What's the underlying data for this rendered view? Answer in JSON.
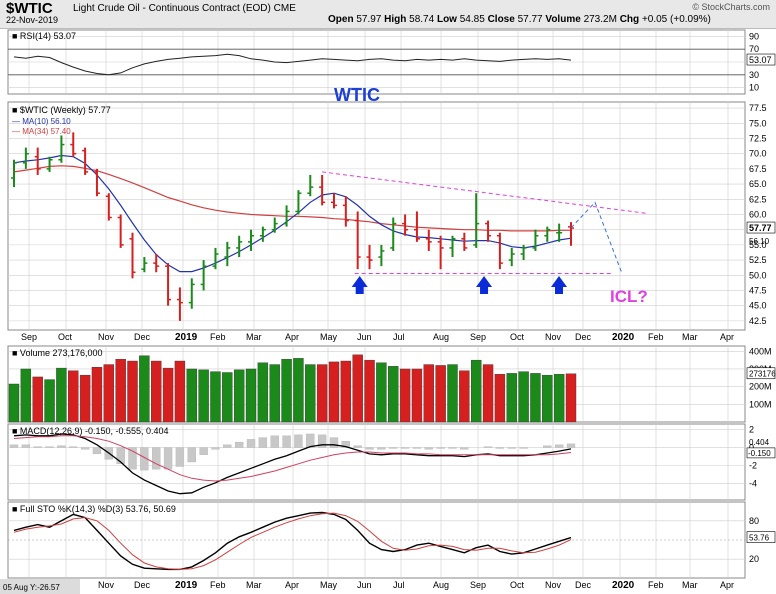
{
  "header": {
    "symbol": "$WTIC",
    "description": "Light Crude Oil - Continuous Contract (EOD)",
    "exchange": "CME",
    "date": "22-Nov-2019",
    "open_label": "Open",
    "open": "57.97",
    "high_label": "High",
    "high": "58.74",
    "low_label": "Low",
    "low": "54.85",
    "close_label": "Close",
    "close": "57.77",
    "volume_label": "Volume",
    "volume": "273.2M",
    "chg_label": "Chg",
    "chg": "+0.05 (+0.09%)",
    "credit": "© StockCharts.com"
  },
  "colors": {
    "up": "#1b8a1b",
    "down": "#d62020",
    "ma10": "#2233aa",
    "ma34": "#d04040",
    "annotation_pink": "#e040e0",
    "arrow_blue": "#0a2bd8",
    "wtic_blue": "#1c3fd6",
    "grid": "#cfcfcf"
  },
  "chart_data": [
    {
      "type": "line",
      "panel": "RSI",
      "legend": "RSI(14) 53.07",
      "ylim": [
        0,
        100
      ],
      "y_ticks": [
        "90",
        "70",
        "50",
        "30",
        "10"
      ],
      "last_value": "53.07",
      "values": [
        58,
        56,
        59,
        57,
        49,
        42,
        36,
        32,
        30,
        33,
        41,
        47,
        51,
        54,
        56,
        58,
        59,
        60,
        62,
        60,
        55,
        53,
        50,
        49,
        51,
        53,
        55,
        54,
        53,
        52,
        54,
        55,
        53,
        52,
        54,
        53,
        54,
        53,
        55,
        53,
        52,
        51,
        53,
        54,
        55,
        54,
        55,
        53
      ]
    },
    {
      "type": "line",
      "panel": "Price",
      "title": "$WTIC (Weekly) 57.77",
      "watermark": "WTIC",
      "ylim": [
        41,
        78.5
      ],
      "y_ticks": [
        "77.5",
        "75.0",
        "72.5",
        "70.0",
        "67.5",
        "65.0",
        "62.5",
        "60.0",
        "57.5",
        "55.0",
        "52.5",
        "50.0",
        "47.5",
        "45.0",
        "42.5"
      ],
      "last_price_label": "57.77",
      "ma10_label": "56.10",
      "x_labels": [
        "Sep",
        "Oct",
        "Nov",
        "Dec",
        "2019",
        "Feb",
        "Mar",
        "Apr",
        "May",
        "Jun",
        "Jul",
        "Aug",
        "Sep",
        "Oct",
        "Nov",
        "Dec",
        "2020",
        "Feb",
        "Mar",
        "Apr"
      ],
      "series": [
        {
          "name": "MA(10) 56.10",
          "values": [
            68.5,
            68.8,
            69.0,
            69.3,
            69.7,
            69.5,
            68.4,
            66.5,
            64.2,
            61.5,
            58.6,
            55.8,
            53.4,
            51.7,
            50.6,
            50.6,
            51.2,
            52.0,
            52.9,
            53.9,
            55.0,
            56.2,
            57.4,
            58.8,
            60.3,
            62.0,
            63.2,
            63.5,
            62.9,
            61.5,
            59.7,
            58.3,
            57.3,
            56.7,
            56.3,
            56.2,
            56.0,
            55.8,
            55.6,
            55.7,
            55.7,
            55.3,
            54.7,
            54.5,
            54.8,
            55.3,
            55.8,
            56.1
          ]
        },
        {
          "name": "MA(34) 57.40",
          "values": [
            67.0,
            67.3,
            67.6,
            67.9,
            68.0,
            67.9,
            67.6,
            67.2,
            66.6,
            65.9,
            65.2,
            64.4,
            63.6,
            62.8,
            62.2,
            61.6,
            61.1,
            60.7,
            60.4,
            60.2,
            60.0,
            59.9,
            59.8,
            59.7,
            59.7,
            59.6,
            59.5,
            59.3,
            59.2,
            59.0,
            58.8,
            58.5,
            58.3,
            58.1,
            57.9,
            57.8,
            57.7,
            57.6,
            57.5,
            57.5,
            57.4,
            57.4,
            57.3,
            57.3,
            57.3,
            57.3,
            57.4,
            57.4
          ]
        }
      ],
      "candles": [
        {
          "o": 66.0,
          "h": 69.0,
          "l": 64.5,
          "c": 68.5
        },
        {
          "o": 68.5,
          "h": 71.0,
          "l": 67.5,
          "c": 70.0
        },
        {
          "o": 69.5,
          "h": 71.0,
          "l": 66.5,
          "c": 67.5
        },
        {
          "o": 67.5,
          "h": 69.5,
          "l": 67.0,
          "c": 69.0
        },
        {
          "o": 69.0,
          "h": 73.0,
          "l": 68.5,
          "c": 71.5
        },
        {
          "o": 71.5,
          "h": 73.5,
          "l": 69.5,
          "c": 70.0
        },
        {
          "o": 70.5,
          "h": 71.0,
          "l": 66.5,
          "c": 67.0
        },
        {
          "o": 67.0,
          "h": 67.5,
          "l": 63.0,
          "c": 63.5
        },
        {
          "o": 63.0,
          "h": 63.5,
          "l": 59.0,
          "c": 59.5
        },
        {
          "o": 59.5,
          "h": 60.0,
          "l": 54.5,
          "c": 55.0
        },
        {
          "o": 56.0,
          "h": 57.0,
          "l": 49.5,
          "c": 50.5
        },
        {
          "o": 51.0,
          "h": 53.0,
          "l": 50.5,
          "c": 52.0
        },
        {
          "o": 52.0,
          "h": 53.5,
          "l": 50.5,
          "c": 51.5
        },
        {
          "o": 51.5,
          "h": 52.0,
          "l": 45.0,
          "c": 46.0
        },
        {
          "o": 46.0,
          "h": 48.0,
          "l": 42.5,
          "c": 45.5
        },
        {
          "o": 45.5,
          "h": 49.5,
          "l": 44.5,
          "c": 48.5
        },
        {
          "o": 48.5,
          "h": 52.5,
          "l": 47.5,
          "c": 51.5
        },
        {
          "o": 51.5,
          "h": 54.5,
          "l": 51.0,
          "c": 53.5
        },
        {
          "o": 53.0,
          "h": 55.5,
          "l": 51.5,
          "c": 54.5
        },
        {
          "o": 54.5,
          "h": 56.5,
          "l": 53.0,
          "c": 55.5
        },
        {
          "o": 55.5,
          "h": 57.5,
          "l": 54.0,
          "c": 56.5
        },
        {
          "o": 56.5,
          "h": 58.0,
          "l": 55.5,
          "c": 57.5
        },
        {
          "o": 57.5,
          "h": 59.5,
          "l": 57.0,
          "c": 58.5
        },
        {
          "o": 58.5,
          "h": 61.5,
          "l": 58.0,
          "c": 60.5
        },
        {
          "o": 60.5,
          "h": 64.0,
          "l": 60.0,
          "c": 63.5
        },
        {
          "o": 63.5,
          "h": 66.5,
          "l": 63.0,
          "c": 64.5
        },
        {
          "o": 64.5,
          "h": 66.5,
          "l": 61.5,
          "c": 62.0
        },
        {
          "o": 62.0,
          "h": 63.5,
          "l": 61.0,
          "c": 61.5
        },
        {
          "o": 61.5,
          "h": 63.0,
          "l": 58.0,
          "c": 59.0
        },
        {
          "o": 59.0,
          "h": 60.5,
          "l": 51.0,
          "c": 53.0
        },
        {
          "o": 53.0,
          "h": 55.0,
          "l": 51.0,
          "c": 52.5
        },
        {
          "o": 53.0,
          "h": 55.0,
          "l": 51.5,
          "c": 54.0
        },
        {
          "o": 54.5,
          "h": 59.5,
          "l": 54.0,
          "c": 58.5
        },
        {
          "o": 58.5,
          "h": 60.0,
          "l": 56.5,
          "c": 57.5
        },
        {
          "o": 57.5,
          "h": 60.5,
          "l": 55.5,
          "c": 56.0
        },
        {
          "o": 56.0,
          "h": 57.5,
          "l": 54.0,
          "c": 55.5
        },
        {
          "o": 55.5,
          "h": 56.5,
          "l": 51.0,
          "c": 54.5
        },
        {
          "o": 54.5,
          "h": 56.5,
          "l": 53.0,
          "c": 56.0
        },
        {
          "o": 56.0,
          "h": 57.0,
          "l": 54.0,
          "c": 54.5
        },
        {
          "o": 55.0,
          "h": 63.5,
          "l": 54.5,
          "c": 58.5
        },
        {
          "o": 58.5,
          "h": 59.0,
          "l": 55.5,
          "c": 56.5
        },
        {
          "o": 56.5,
          "h": 57.0,
          "l": 51.0,
          "c": 52.0
        },
        {
          "o": 52.5,
          "h": 54.5,
          "l": 51.5,
          "c": 53.5
        },
        {
          "o": 53.5,
          "h": 55.0,
          "l": 52.5,
          "c": 54.5
        },
        {
          "o": 54.5,
          "h": 57.5,
          "l": 54.0,
          "c": 56.5
        },
        {
          "o": 56.5,
          "h": 58.0,
          "l": 55.5,
          "c": 57.5
        },
        {
          "o": 57.0,
          "h": 58.5,
          "l": 55.5,
          "c": 57.0
        },
        {
          "o": 57.97,
          "h": 58.74,
          "l": 54.85,
          "c": 57.77
        }
      ],
      "annotations": [
        "ICL?"
      ]
    },
    {
      "type": "bar",
      "panel": "Volume",
      "legend": "Volume 273,176,000",
      "y_ticks": [
        "400M",
        "300M",
        "200M",
        "100M"
      ],
      "last_value": "273176",
      "values": [
        215,
        300,
        255,
        240,
        305,
        290,
        265,
        310,
        325,
        355,
        345,
        375,
        345,
        305,
        345,
        300,
        295,
        285,
        280,
        295,
        300,
        335,
        325,
        355,
        360,
        325,
        325,
        340,
        345,
        380,
        350,
        335,
        315,
        300,
        300,
        325,
        320,
        325,
        290,
        350,
        325,
        270,
        275,
        285,
        275,
        265,
        270,
        273
      ]
    },
    {
      "type": "line",
      "panel": "MACD",
      "legend": "MACD(12,26,9) -0.150, -0.555, 0.404",
      "y_ticks": [
        "2",
        "0",
        "-2",
        "-4"
      ],
      "last_value_labels": [
        "0.404",
        "-0.150"
      ],
      "series": [
        {
          "name": "MACD",
          "values": [
            1.3,
            1.4,
            1.3,
            1.3,
            1.5,
            1.4,
            1.0,
            0.3,
            -0.6,
            -1.6,
            -2.8,
            -3.6,
            -4.2,
            -4.8,
            -5.1,
            -5.0,
            -4.4,
            -3.9,
            -3.3,
            -2.8,
            -2.3,
            -1.8,
            -1.3,
            -0.9,
            -0.4,
            0.1,
            0.3,
            0.3,
            0.1,
            -0.3,
            -0.7,
            -0.8,
            -0.7,
            -0.7,
            -0.8,
            -0.9,
            -0.9,
            -0.9,
            -1.0,
            -0.8,
            -0.7,
            -0.9,
            -0.9,
            -0.9,
            -0.8,
            -0.6,
            -0.4,
            -0.15
          ]
        },
        {
          "name": "Signal",
          "values": [
            1.0,
            1.1,
            1.2,
            1.2,
            1.3,
            1.3,
            1.2,
            1.0,
            0.7,
            0.2,
            -0.4,
            -1.1,
            -1.8,
            -2.4,
            -3.0,
            -3.4,
            -3.6,
            -3.7,
            -3.6,
            -3.4,
            -3.2,
            -2.9,
            -2.6,
            -2.2,
            -1.8,
            -1.4,
            -1.1,
            -0.8,
            -0.6,
            -0.5,
            -0.5,
            -0.6,
            -0.6,
            -0.6,
            -0.7,
            -0.7,
            -0.8,
            -0.8,
            -0.8,
            -0.8,
            -0.8,
            -0.8,
            -0.8,
            -0.8,
            -0.8,
            -0.8,
            -0.7,
            -0.555
          ]
        }
      ]
    },
    {
      "type": "line",
      "panel": "Full STO",
      "legend": "Full STO %K(14,3) %D(3) 53.76, 50.69",
      "y_ticks": [
        "80",
        "20"
      ],
      "last_value": "53.76",
      "bottom_label": "05 Aug Y:-26.57",
      "series": [
        {
          "name": "%K",
          "values": [
            65,
            70,
            74,
            70,
            80,
            90,
            85,
            65,
            45,
            25,
            12,
            6,
            5,
            4,
            4,
            8,
            18,
            30,
            45,
            55,
            62,
            70,
            78,
            84,
            88,
            92,
            93,
            90,
            82,
            65,
            45,
            35,
            32,
            35,
            42,
            45,
            40,
            35,
            30,
            38,
            42,
            32,
            28,
            30,
            36,
            42,
            48,
            53.76
          ]
        },
        {
          "name": "%D",
          "values": [
            62,
            67,
            70,
            72,
            75,
            83,
            85,
            80,
            65,
            45,
            27,
            14,
            8,
            5,
            4,
            5,
            10,
            19,
            31,
            43,
            54,
            62,
            70,
            77,
            83,
            88,
            91,
            92,
            88,
            79,
            64,
            48,
            37,
            34,
            36,
            41,
            42,
            40,
            35,
            34,
            37,
            37,
            33,
            30,
            31,
            36,
            42,
            50.69
          ]
        }
      ]
    }
  ],
  "notes": {}
}
